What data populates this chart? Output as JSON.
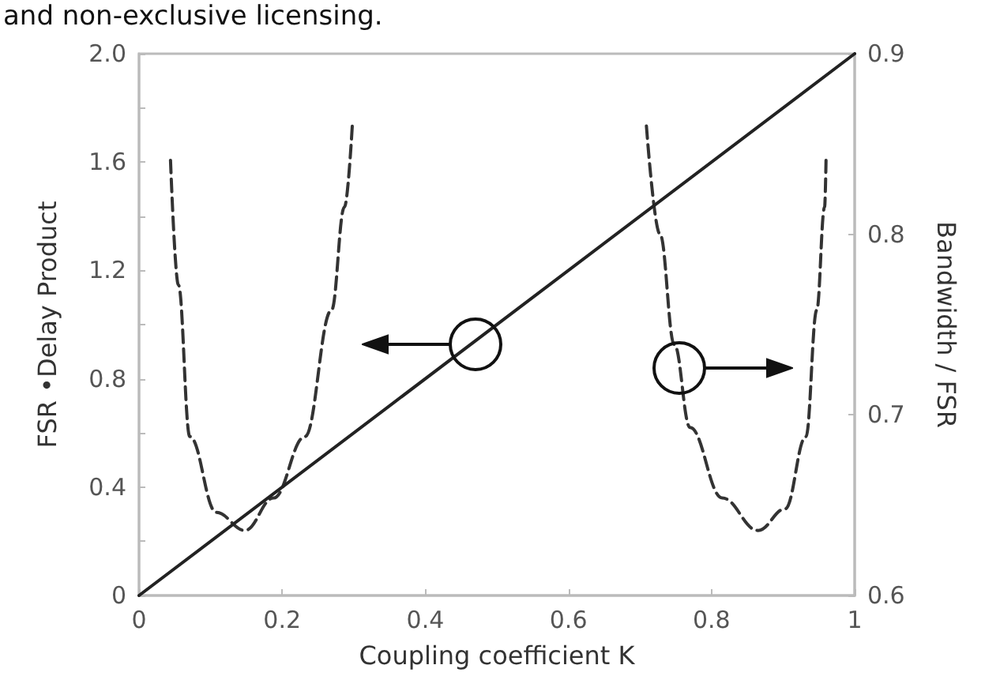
{
  "chart_data": {
    "type": "line",
    "annotations": [
      "and non-exclusive licensing."
    ],
    "xlabel": "Coupling coefficient K",
    "ylabel": "FSR •Delay Product",
    "y2label": "Bandwidth / FSR",
    "xlim": [
      0,
      1
    ],
    "xticks": [
      0,
      0.2,
      0.4,
      0.6,
      0.8,
      1
    ],
    "ylim": [
      0,
      2
    ],
    "yticks": [
      0,
      {
        "value": 0.2,
        "label": null
      },
      0.4,
      {
        "value": 0.6,
        "label": null
      },
      0.8,
      {
        "value": 1,
        "label": null
      },
      1.2,
      {
        "value": 1.4,
        "label": null
      },
      1.6,
      {
        "value": 1.8,
        "label": null
      },
      {
        "value": 2,
        "label": "2.0"
      }
    ],
    "y2lim": [
      0.6,
      0.9
    ],
    "y2ticks": [
      0.6,
      0.7,
      0.8,
      0.9
    ],
    "marker": "none",
    "series": [
      {
        "color": "#222222",
        "line_style": "solid",
        "x": [
          0,
          1
        ],
        "values": [
          0,
          2
        ]
      },
      {
        "color": "#333333",
        "line_style": "dashed",
        "axis": "y2",
        "x": [
          0.044,
          0.055,
          0.071,
          0.108,
          0.148,
          0.188,
          0.232,
          0.269,
          0.287,
          0.298
        ],
        "values": [
          0.841,
          0.772,
          0.688,
          0.646,
          0.636,
          0.654,
          0.688,
          0.758,
          0.815,
          0.86
        ]
      },
      {
        "color": "#333333",
        "line_style": "dashed",
        "axis": "y2",
        "x": [
          0.709,
          0.728,
          0.748,
          0.77,
          0.815,
          0.865,
          0.903,
          0.932,
          0.947,
          0.958,
          0.96
        ],
        "values": [
          0.86,
          0.8,
          0.739,
          0.693,
          0.654,
          0.636,
          0.648,
          0.688,
          0.758,
          0.815,
          0.841
        ]
      }
    ]
  }
}
